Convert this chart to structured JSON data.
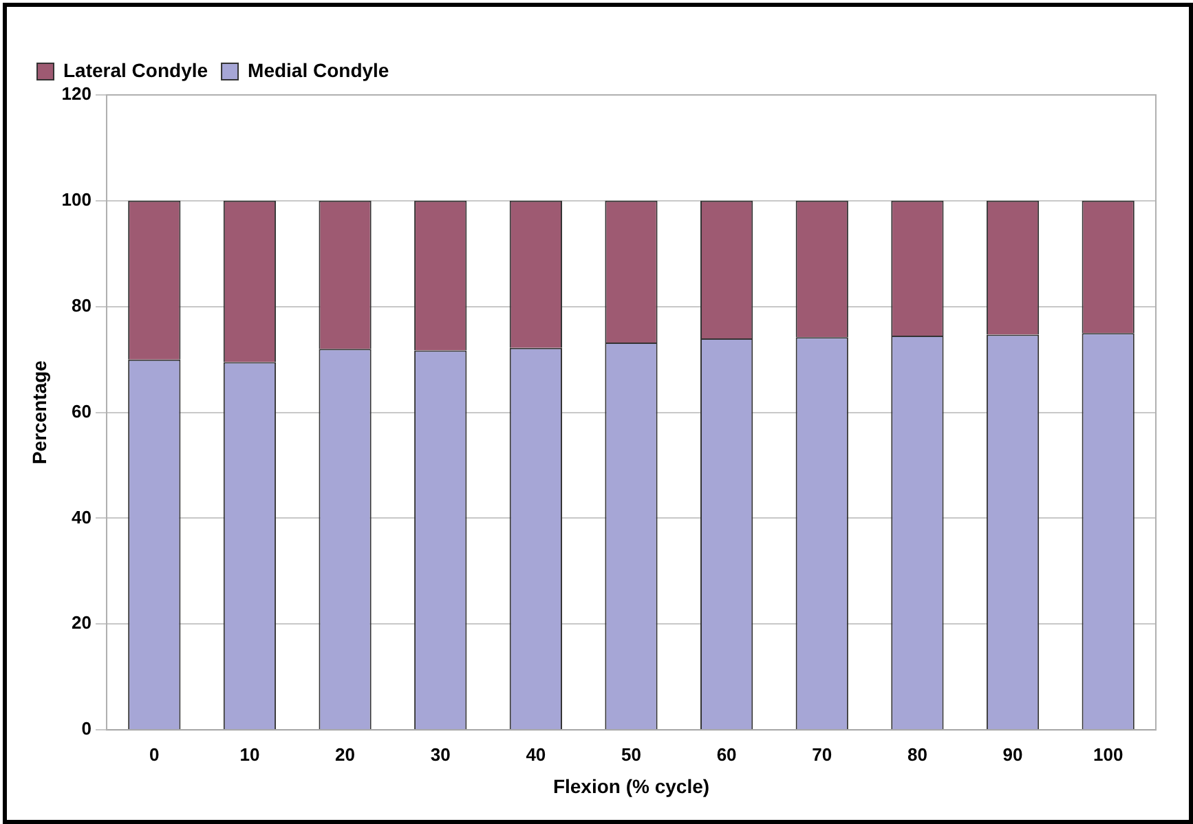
{
  "chart_data": {
    "type": "bar",
    "stacked": true,
    "xlabel": "Flexion (% cycle)",
    "ylabel": "Percentage",
    "categories": [
      "0",
      "10",
      "20",
      "30",
      "40",
      "50",
      "60",
      "70",
      "80",
      "90",
      "100"
    ],
    "series": [
      {
        "name": "Medial Condyle",
        "color": "#a6a6d6",
        "values": [
          70,
          69.5,
          72,
          71.7,
          72.2,
          73.2,
          74,
          74.2,
          74.5,
          74.7,
          75
        ]
      },
      {
        "name": "Lateral Condyle",
        "color": "#9e5a72",
        "values": [
          30,
          30.5,
          28,
          28.3,
          27.8,
          26.8,
          26,
          25.8,
          25.5,
          25.3,
          25
        ]
      }
    ],
    "ylim": [
      0,
      120
    ],
    "yticks": [
      0,
      20,
      40,
      60,
      80,
      100,
      120
    ],
    "grid": "y",
    "legend": "top left"
  }
}
